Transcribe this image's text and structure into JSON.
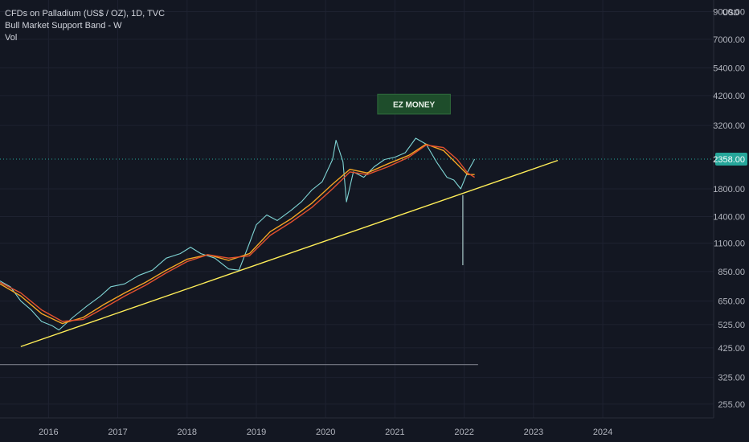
{
  "legend": {
    "symbol": "CFDs on Palladium (US$ / OZ), 1D, TVC",
    "indicator": "Bull Market Support Band - W",
    "volume": "Vol"
  },
  "currency": "USD",
  "colors": {
    "background": "#131722",
    "grid": "#1e2230",
    "price_line": "#7fd4d4",
    "ema_line": "#f5a623",
    "sma_line": "#e2502f",
    "trend_line": "#ffee58",
    "support_line": "#787b86",
    "current_price_tag": "#26a69a",
    "annotation_box": "#1e4d2b"
  },
  "chart_data": {
    "type": "line",
    "title": "CFDs on Palladium (US$ / OZ), 1D, TVC",
    "xlabel": "",
    "ylabel": "",
    "y_scale": "log",
    "ylim": [
      225,
      10000
    ],
    "xlim": [
      2015.3,
      2025.6
    ],
    "x_ticks": [
      "2016",
      "2017",
      "2018",
      "2019",
      "2020",
      "2021",
      "2022",
      "2023",
      "2024"
    ],
    "y_ticks": [
      "9000.00",
      "7000.00",
      "5400.00",
      "4200.00",
      "3200.00",
      "1800.00",
      "1400.00",
      "1100.00",
      "850.00",
      "650.00",
      "525.00",
      "425.00",
      "325.00",
      "255.00"
    ],
    "current_price": "2358.00",
    "grid": true,
    "series": [
      {
        "kind": "price",
        "x": [
          2015.3,
          2015.45,
          2015.6,
          2015.75,
          2015.9,
          2016.05,
          2016.15,
          2016.35,
          2016.55,
          2016.75,
          2016.9,
          2017.1,
          2017.3,
          2017.5,
          2017.7,
          2017.9,
          2018.05,
          2018.2,
          2018.4,
          2018.6,
          2018.75,
          2018.9,
          2019.0,
          2019.15,
          2019.3,
          2019.5,
          2019.65,
          2019.8,
          2019.95,
          2020.1,
          2020.15,
          2020.25,
          2020.3,
          2020.4,
          2020.55,
          2020.7,
          2020.85,
          2021.0,
          2021.15,
          2021.3,
          2021.45,
          2021.6,
          2021.75,
          2021.85,
          2021.95,
          2022.05,
          2022.15
        ],
        "y": [
          780,
          740,
          650,
          600,
          540,
          520,
          500,
          560,
          620,
          680,
          740,
          760,
          820,
          860,
          960,
          1000,
          1060,
          1000,
          960,
          870,
          860,
          1100,
          1300,
          1420,
          1350,
          1480,
          1600,
          1780,
          1920,
          2350,
          2800,
          2300,
          1600,
          2100,
          2000,
          2200,
          2350,
          2400,
          2500,
          2850,
          2700,
          2300,
          2000,
          1950,
          1800,
          2100,
          2358
        ]
      },
      {
        "kind": "ema",
        "x": [
          2015.3,
          2015.6,
          2015.9,
          2016.2,
          2016.5,
          2016.8,
          2017.1,
          2017.4,
          2017.7,
          2018.0,
          2018.3,
          2018.6,
          2018.9,
          2019.2,
          2019.5,
          2019.8,
          2020.1,
          2020.35,
          2020.6,
          2020.9,
          2021.2,
          2021.45,
          2021.7,
          2021.9,
          2022.05,
          2022.15
        ],
        "y": [
          760,
          680,
          580,
          530,
          560,
          630,
          700,
          770,
          860,
          950,
          990,
          940,
          1000,
          1220,
          1370,
          1580,
          1880,
          2150,
          2080,
          2260,
          2440,
          2700,
          2550,
          2250,
          2050,
          2050
        ]
      },
      {
        "kind": "sma",
        "x": [
          2015.3,
          2015.6,
          2015.9,
          2016.2,
          2016.5,
          2016.8,
          2017.1,
          2017.4,
          2017.7,
          2018.0,
          2018.3,
          2018.6,
          2018.9,
          2019.2,
          2019.5,
          2019.8,
          2020.1,
          2020.35,
          2020.6,
          2020.9,
          2021.2,
          2021.45,
          2021.7,
          2021.9,
          2022.05,
          2022.15
        ],
        "y": [
          770,
          700,
          600,
          540,
          550,
          610,
          680,
          750,
          840,
          930,
          990,
          960,
          980,
          1180,
          1330,
          1520,
          1800,
          2100,
          2050,
          2200,
          2400,
          2680,
          2620,
          2350,
          2080,
          2000
        ]
      }
    ],
    "annotations": [
      {
        "kind": "trendline",
        "x": [
          2015.6,
          2023.35
        ],
        "y": [
          430,
          2330
        ]
      },
      {
        "kind": "hline",
        "x": [
          2015.3,
          2022.2
        ],
        "y": [
          365,
          365
        ]
      },
      {
        "kind": "spike",
        "x": [
          2021.98,
          2021.98
        ],
        "y": [
          900,
          1700
        ]
      },
      {
        "kind": "box",
        "label": "EZ MONEY",
        "x": [
          2020.75,
          2021.8
        ],
        "y": [
          3550,
          4250
        ]
      }
    ]
  }
}
